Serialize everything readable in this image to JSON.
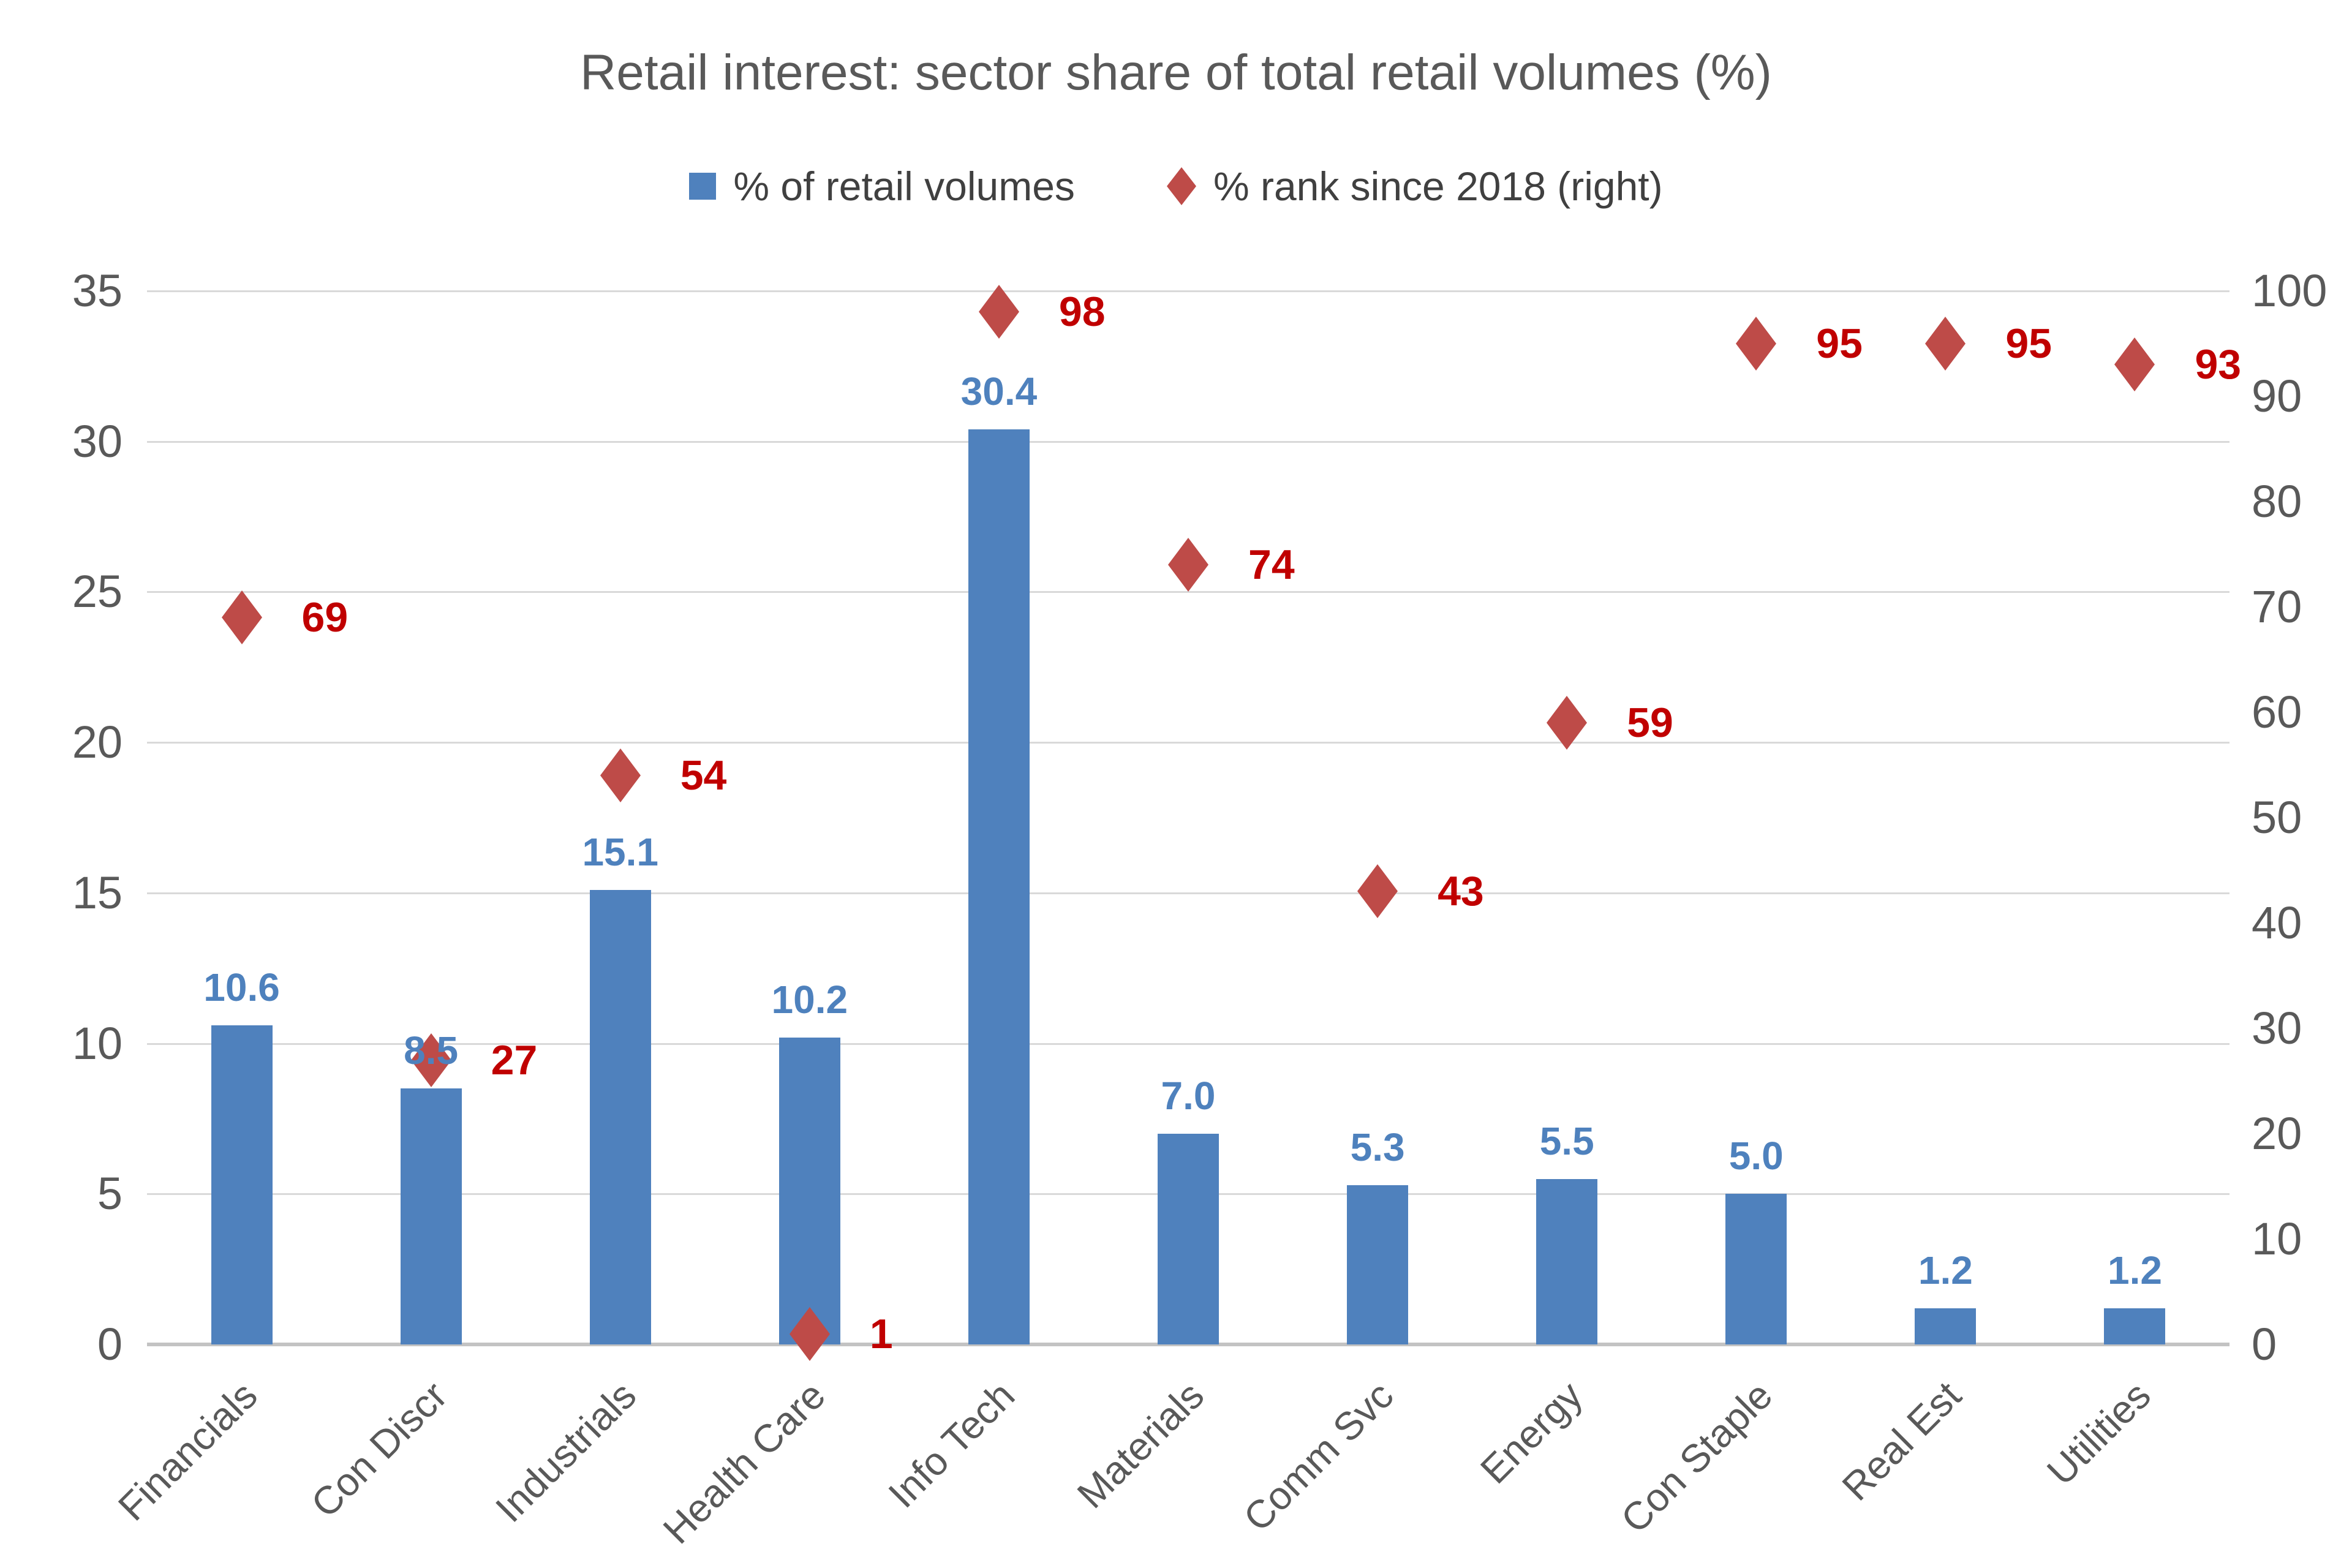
{
  "title": "Retail interest: sector share of total retail volumes (%)",
  "legend": {
    "items": [
      {
        "label": "% of retail volumes",
        "marker": "square"
      },
      {
        "label": "% rank since 2018 (right)",
        "marker": "diamond"
      }
    ]
  },
  "colors": {
    "bar": "#4F81BD",
    "bar_label": "#4E81BD",
    "diamond": "#BE4B48",
    "rank_label": "#C00000",
    "axis_text": "#595959",
    "gridline": "#D9D9D9",
    "baseline": "#C3C3C3"
  },
  "chart_data": {
    "type": "bar",
    "title": "Retail interest: sector share of total retail volumes (%)",
    "categories": [
      "Financials",
      "Con Discr",
      "Industrials",
      "Health Care",
      "Info Tech",
      "Materials",
      "Comm Svc",
      "Energy",
      "Con Staple",
      "Real Est",
      "Utilities"
    ],
    "series": [
      {
        "name": "% of retail volumes",
        "type": "bar",
        "axis": "left",
        "values": [
          10.6,
          8.5,
          15.1,
          10.2,
          30.4,
          7.0,
          5.3,
          5.5,
          5.0,
          1.2,
          1.2
        ]
      },
      {
        "name": "% rank since 2018 (right)",
        "type": "scatter",
        "marker": "diamond",
        "axis": "right",
        "values": [
          69,
          27,
          54,
          1,
          98,
          74,
          43,
          59,
          95,
          95,
          93
        ]
      }
    ],
    "left_axis": {
      "min": 0,
      "max": 35,
      "step": 5,
      "ticks": [
        0,
        5,
        10,
        15,
        20,
        25,
        30,
        35
      ]
    },
    "right_axis": {
      "min": 0,
      "max": 100,
      "step": 10,
      "ticks": [
        0,
        10,
        20,
        30,
        40,
        50,
        60,
        70,
        80,
        90,
        100
      ]
    },
    "grid": true,
    "legend_position": "top",
    "data_labels": true
  }
}
